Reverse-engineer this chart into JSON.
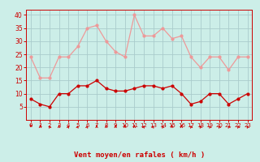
{
  "x": [
    0,
    1,
    2,
    3,
    4,
    5,
    6,
    7,
    8,
    9,
    10,
    11,
    12,
    13,
    14,
    15,
    16,
    17,
    18,
    19,
    20,
    21,
    22,
    23
  ],
  "avg_wind": [
    8,
    6,
    5,
    10,
    10,
    13,
    13,
    15,
    12,
    11,
    11,
    12,
    13,
    13,
    12,
    13,
    10,
    6,
    7,
    10,
    10,
    6,
    8,
    10
  ],
  "gust_wind": [
    24,
    16,
    16,
    24,
    24,
    28,
    35,
    36,
    30,
    26,
    24,
    40,
    32,
    32,
    35,
    31,
    32,
    24,
    20,
    24,
    24,
    19,
    24,
    24
  ],
  "background_color": "#cceee8",
  "grid_color": "#aacccc",
  "avg_color": "#cc0000",
  "gust_color": "#ee9999",
  "xlabel": "Vent moyen/en rafales ( km/h )",
  "xlabel_color": "#cc0000",
  "yticks": [
    5,
    10,
    15,
    20,
    25,
    30,
    35,
    40
  ],
  "ylim": [
    0,
    42
  ],
  "xlim": [
    -0.5,
    23.5
  ],
  "wind_dirs": [
    225,
    0,
    315,
    0,
    45,
    45,
    45,
    0,
    0,
    0,
    0,
    0,
    45,
    45,
    315,
    0,
    0,
    315,
    315,
    315,
    315,
    315,
    315,
    315
  ]
}
